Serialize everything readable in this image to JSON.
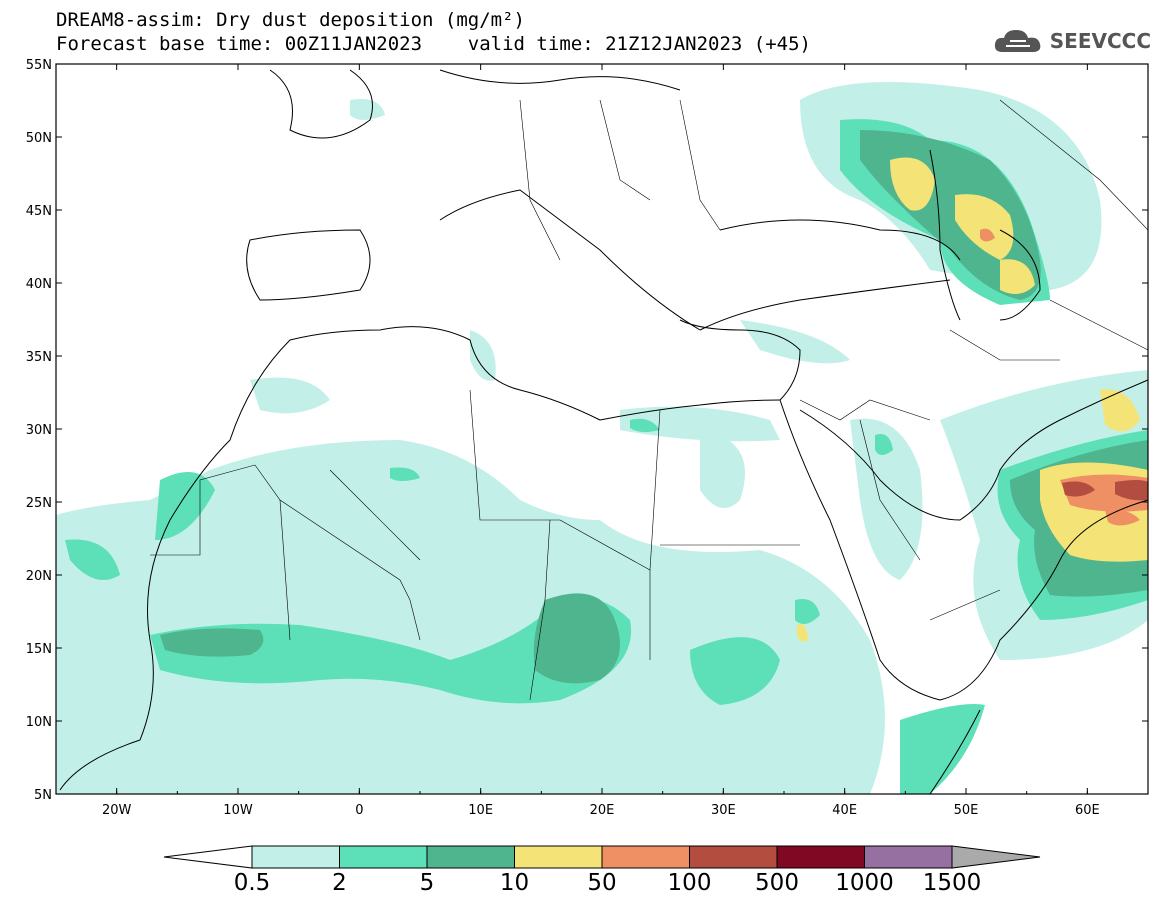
{
  "title": {
    "line1": "DREAM8-assim: Dry dust deposition (mg/m²)",
    "line2": "Forecast base time: 00Z11JAN2023    valid time: 21Z12JAN2023 (+45)"
  },
  "logo": {
    "text": "SEEVCCC",
    "icon": "cloud-icon"
  },
  "map": {
    "lon_range": [
      -25,
      65
    ],
    "lat_range": [
      5,
      55
    ],
    "x_ticks": [
      "20W",
      "10W",
      "0",
      "10E",
      "20E",
      "30E",
      "40E",
      "50E",
      "60E"
    ],
    "y_ticks": [
      "55N",
      "50N",
      "45N",
      "40N",
      "35N",
      "30N",
      "25N",
      "20N",
      "15N",
      "10N",
      "5N"
    ]
  },
  "legend": {
    "labels": [
      "0.5",
      "2",
      "5",
      "10",
      "50",
      "100",
      "500",
      "1000",
      "1500"
    ],
    "colors": [
      "#c2f0e8",
      "#5de0b8",
      "#4fb58e",
      "#f4e478",
      "#ee9064",
      "#b24d40",
      "#810823",
      "#9670a0"
    ],
    "under_color": "#ffffff",
    "over_color": "#aaaaaa"
  }
}
